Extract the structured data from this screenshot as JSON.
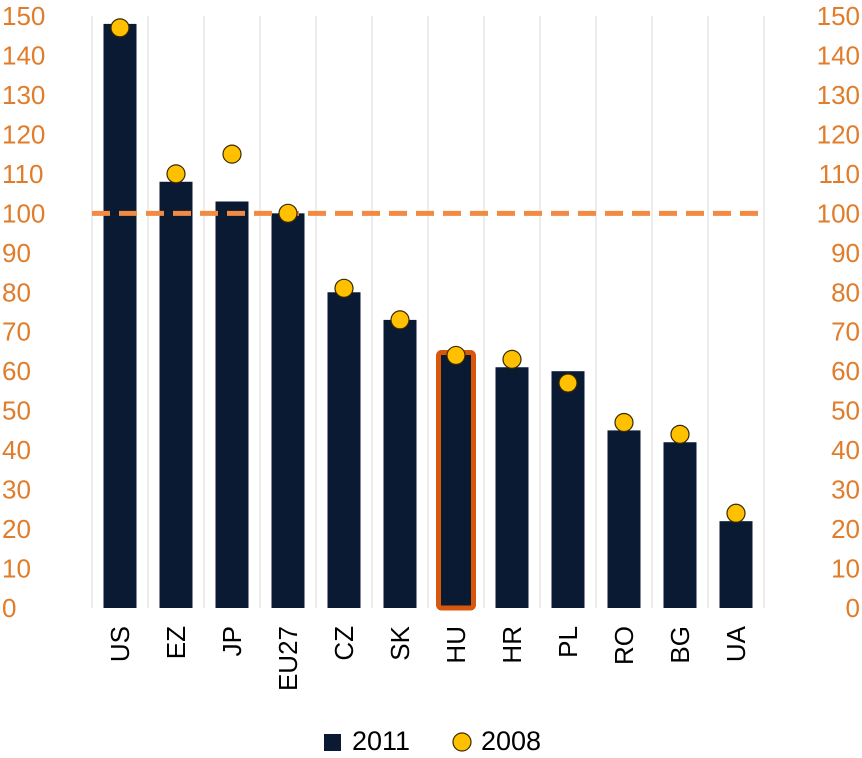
{
  "colors": {
    "bar": "#0b1a33",
    "dot_fill": "#ffc000",
    "dot_stroke": "#3a2a00",
    "reference_line": "#f28a41",
    "highlight_outline": "#d9570c",
    "tick_text": "#e07c2a",
    "grid": "#e6e6e6",
    "background": "#ffffff"
  },
  "chart_data": {
    "type": "bar",
    "categories": [
      "US",
      "EZ",
      "JP",
      "EU27",
      "CZ",
      "SK",
      "HU",
      "HR",
      "PL",
      "RO",
      "BG",
      "UA"
    ],
    "series": [
      {
        "name": "2011",
        "kind": "bar",
        "values": [
          148,
          108,
          103,
          100,
          80,
          73,
          65,
          61,
          60,
          45,
          42,
          22
        ]
      },
      {
        "name": "2008",
        "kind": "marker",
        "values": [
          147,
          110,
          115,
          100,
          81,
          73,
          64,
          63,
          57,
          47,
          44,
          24
        ]
      }
    ],
    "reference_line": {
      "value": 100,
      "style": "dashed"
    },
    "highlighted_category": "HU",
    "ylim": [
      0,
      150
    ],
    "y_ticks": [
      0,
      10,
      20,
      30,
      40,
      50,
      60,
      70,
      80,
      90,
      100,
      110,
      120,
      130,
      140,
      150
    ],
    "secondary_y_ticks": [
      0,
      10,
      20,
      30,
      40,
      50,
      60,
      70,
      80,
      90,
      100,
      110,
      120,
      130,
      140,
      150
    ],
    "grid": "vertical",
    "legend": {
      "position": "bottom",
      "entries": [
        "2011",
        "2008"
      ]
    },
    "title": "",
    "xlabel": "",
    "ylabel": ""
  }
}
